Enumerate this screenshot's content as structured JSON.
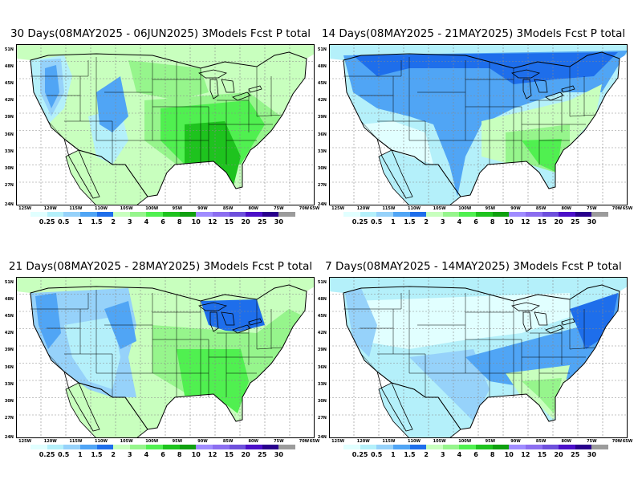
{
  "panels": [
    {
      "title": "30 Days(08MAY2025 - 06JUN2025) 3Models Fcst P total",
      "scheme": "wet"
    },
    {
      "title": "14 Days(08MAY2025 - 21MAY2025) 3Models Fcst P total",
      "scheme": "blue_north"
    },
    {
      "title": "21 Days(08MAY2025 - 28MAY2025) 3Models Fcst P total",
      "scheme": "mid"
    },
    {
      "title": "7 Days(08MAY2025 - 14MAY2025) 3Models Fcst P total",
      "scheme": "dry"
    }
  ],
  "lon_labels": [
    "125W",
    "120W",
    "115W",
    "110W",
    "105W",
    "100W",
    "95W",
    "90W",
    "85W",
    "80W",
    "75W",
    "70W",
    "65W"
  ],
  "lat_labels": [
    "51N",
    "48N",
    "45N",
    "42N",
    "39N",
    "36N",
    "33N",
    "30N",
    "27N",
    "24N"
  ],
  "colorbar": {
    "labels": [
      "0.25",
      "0.5",
      "1",
      "1.5",
      "2",
      "3",
      "4",
      "6",
      "8",
      "10",
      "12",
      "15",
      "20",
      "25",
      "30"
    ],
    "colors": [
      "#e1ffff",
      "#b4f0fa",
      "#96d2fa",
      "#50a5f5",
      "#1e6eeb",
      "#c8ffbe",
      "#96f58c",
      "#50f050",
      "#1ec31e",
      "#0fa00f",
      "#a08cff",
      "#8c6ef0",
      "#6e50dc",
      "#4b0fc8",
      "#28008c",
      "#9b9b9b"
    ]
  },
  "colors": {
    "c025": "#e1ffff",
    "c05": "#b4f0fa",
    "c1": "#96d2fa",
    "c15": "#50a5f5",
    "c2": "#1e6eeb",
    "c3": "#c8ffbe",
    "c4": "#96f58c",
    "c6": "#50f050",
    "c8": "#1ec31e"
  }
}
